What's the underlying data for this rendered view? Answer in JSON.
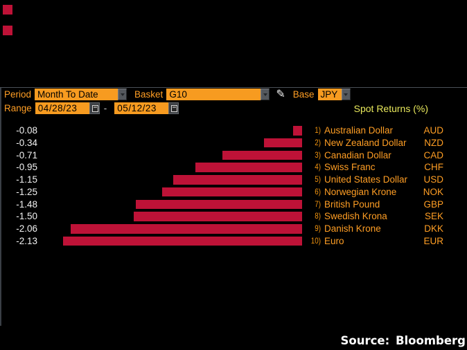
{
  "colors": {
    "background": "#000000",
    "bar_red": "#be1237",
    "field_orange": "#f79b20",
    "label_orange": "#ff9e24",
    "title_yellow": "#e9e95c",
    "value_white": "#f2f2f2",
    "border_gray": "#4a5057"
  },
  "toolbar": {
    "period_label": "Period",
    "period_value": "Month To Date",
    "basket_label": "Basket",
    "basket_value": "G10",
    "pencil_icon": "✎",
    "base_label": "Base",
    "base_value": "JPY",
    "range_label": "Range",
    "range_start": "04/28/23",
    "range_separator": "-",
    "range_end": "05/12/23"
  },
  "chart_data": {
    "type": "bar",
    "orientation": "horizontal",
    "title": "Spot Returns (%)",
    "unit": "percent",
    "xlim": [
      -2.25,
      0
    ],
    "bars_anchored_right": true,
    "categories": [
      "Australian Dollar",
      "New Zealand Dollar",
      "Canadian Dollar",
      "Swiss Franc",
      "United States Dollar",
      "Norwegian Krone",
      "British Pound",
      "Swedish Krona",
      "Danish Krone",
      "Euro"
    ],
    "values": [
      -0.08,
      -0.34,
      -0.71,
      -0.95,
      -1.15,
      -1.25,
      -1.48,
      -1.5,
      -2.06,
      -2.13
    ],
    "value_labels": [
      "-0.08",
      "-0.34",
      "-0.71",
      "-0.95",
      "-1.15",
      "-1.25",
      "-1.48",
      "-1.50",
      "-2.06",
      "-2.13"
    ],
    "ranks": [
      "1)",
      "2)",
      "3)",
      "4)",
      "5)",
      "6)",
      "7)",
      "8)",
      "9)",
      "10)"
    ],
    "codes": [
      "AUD",
      "NZD",
      "CAD",
      "CHF",
      "USD",
      "NOK",
      "GBP",
      "SEK",
      "DKK",
      "EUR"
    ]
  },
  "footer": {
    "source_text": "Source: Bloomberg"
  }
}
